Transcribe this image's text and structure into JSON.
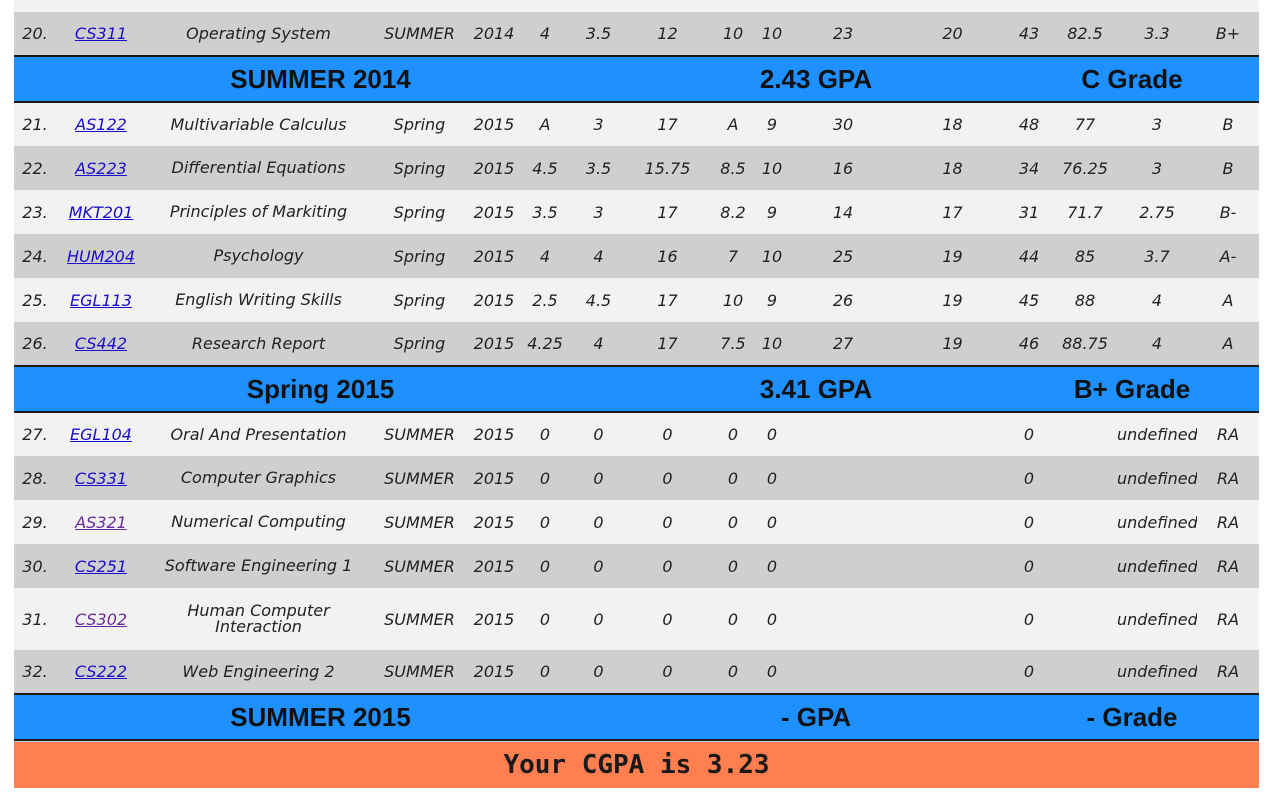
{
  "colors": {
    "summary_bar": "#1e90ff",
    "cgpa_bar": "#ff7f50",
    "row_light": "#f2f2f2",
    "row_dark": "#cfcfcf",
    "link": "#1a0dcc",
    "link_visited": "#6a2a9a"
  },
  "rows": [
    {
      "no": "20.",
      "code": "CS311",
      "name": "Operating System",
      "term": "SUMMER",
      "year": "2014",
      "c1": "4",
      "c2": "3.5",
      "c3": "12",
      "c4": "10",
      "c5": "10",
      "c6": "23",
      "c7": "20",
      "c8": "43",
      "total": "82.5",
      "gp": "3.3",
      "grade": "B+"
    },
    {
      "no": "21.",
      "code": "AS122",
      "name": "Multivariable Calculus",
      "term": "Spring",
      "year": "2015",
      "c1": "A",
      "c2": "3",
      "c3": "17",
      "c4": "A",
      "c5": "9",
      "c6": "30",
      "c7": "18",
      "c8": "48",
      "total": "77",
      "gp": "3",
      "grade": "B"
    },
    {
      "no": "22.",
      "code": "AS223",
      "name": "Differential Equations",
      "term": "Spring",
      "year": "2015",
      "c1": "4.5",
      "c2": "3.5",
      "c3": "15.75",
      "c4": "8.5",
      "c5": "10",
      "c6": "16",
      "c7": "18",
      "c8": "34",
      "total": "76.25",
      "gp": "3",
      "grade": "B"
    },
    {
      "no": "23.",
      "code": "MKT201",
      "name": "Principles of Markiting",
      "term": "Spring",
      "year": "2015",
      "c1": "3.5",
      "c2": "3",
      "c3": "17",
      "c4": "8.2",
      "c5": "9",
      "c6": "14",
      "c7": "17",
      "c8": "31",
      "total": "71.7",
      "gp": "2.75",
      "grade": "B-"
    },
    {
      "no": "24.",
      "code": "HUM204",
      "name": "Psychology",
      "term": "Spring",
      "year": "2015",
      "c1": "4",
      "c2": "4",
      "c3": "16",
      "c4": "7",
      "c5": "10",
      "c6": "25",
      "c7": "19",
      "c8": "44",
      "total": "85",
      "gp": "3.7",
      "grade": "A-"
    },
    {
      "no": "25.",
      "code": "EGL113",
      "name": "English Writing Skills",
      "term": "Spring",
      "year": "2015",
      "c1": "2.5",
      "c2": "4.5",
      "c3": "17",
      "c4": "10",
      "c5": "9",
      "c6": "26",
      "c7": "19",
      "c8": "45",
      "total": "88",
      "gp": "4",
      "grade": "A"
    },
    {
      "no": "26.",
      "code": "CS442",
      "name": "Research Report",
      "term": "Spring",
      "year": "2015",
      "c1": "4.25",
      "c2": "4",
      "c3": "17",
      "c4": "7.5",
      "c5": "10",
      "c6": "27",
      "c7": "19",
      "c8": "46",
      "total": "88.75",
      "gp": "4",
      "grade": "A"
    },
    {
      "no": "27.",
      "code": "EGL104",
      "name": "Oral And Presentation",
      "term": "SUMMER",
      "year": "2015",
      "c1": "0",
      "c2": "0",
      "c3": "0",
      "c4": "0",
      "c5": "0",
      "c6": "",
      "c7": "",
      "c8": "0",
      "total": "",
      "gp": "undefined",
      "grade": "RA"
    },
    {
      "no": "28.",
      "code": "CS331",
      "name": "Computer Graphics",
      "term": "SUMMER",
      "year": "2015",
      "c1": "0",
      "c2": "0",
      "c3": "0",
      "c4": "0",
      "c5": "0",
      "c6": "",
      "c7": "",
      "c8": "0",
      "total": "",
      "gp": "undefined",
      "grade": "RA"
    },
    {
      "no": "29.",
      "code": "AS321",
      "name": "Numerical Computing",
      "term": "SUMMER",
      "year": "2015",
      "c1": "0",
      "c2": "0",
      "c3": "0",
      "c4": "0",
      "c5": "0",
      "c6": "",
      "c7": "",
      "c8": "0",
      "total": "",
      "gp": "undefined",
      "grade": "RA"
    },
    {
      "no": "30.",
      "code": "CS251",
      "name": "Software Engineering 1",
      "term": "SUMMER",
      "year": "2015",
      "c1": "0",
      "c2": "0",
      "c3": "0",
      "c4": "0",
      "c5": "0",
      "c6": "",
      "c7": "",
      "c8": "0",
      "total": "",
      "gp": "undefined",
      "grade": "RA"
    },
    {
      "no": "31.",
      "code": "CS302",
      "name": "Human Computer Interaction",
      "term": "SUMMER",
      "year": "2015",
      "c1": "0",
      "c2": "0",
      "c3": "0",
      "c4": "0",
      "c5": "0",
      "c6": "",
      "c7": "",
      "c8": "0",
      "total": "",
      "gp": "undefined",
      "grade": "RA"
    },
    {
      "no": "32.",
      "code": "CS222",
      "name": "Web Engineering 2",
      "term": "SUMMER",
      "year": "2015",
      "c1": "0",
      "c2": "0",
      "c3": "0",
      "c4": "0",
      "c5": "0",
      "c6": "",
      "c7": "",
      "c8": "0",
      "total": "",
      "gp": "undefined",
      "grade": "RA"
    }
  ],
  "summaries": [
    {
      "term": "SUMMER 2014",
      "gpa": "2.43 GPA",
      "grade": "C Grade"
    },
    {
      "term": "Spring 2015",
      "gpa": "3.41 GPA",
      "grade": "B+ Grade"
    },
    {
      "term": "SUMMER 2015",
      "gpa": "- GPA",
      "grade": "- Grade"
    }
  ],
  "cgpa_text": "Your CGPA is 3.23"
}
